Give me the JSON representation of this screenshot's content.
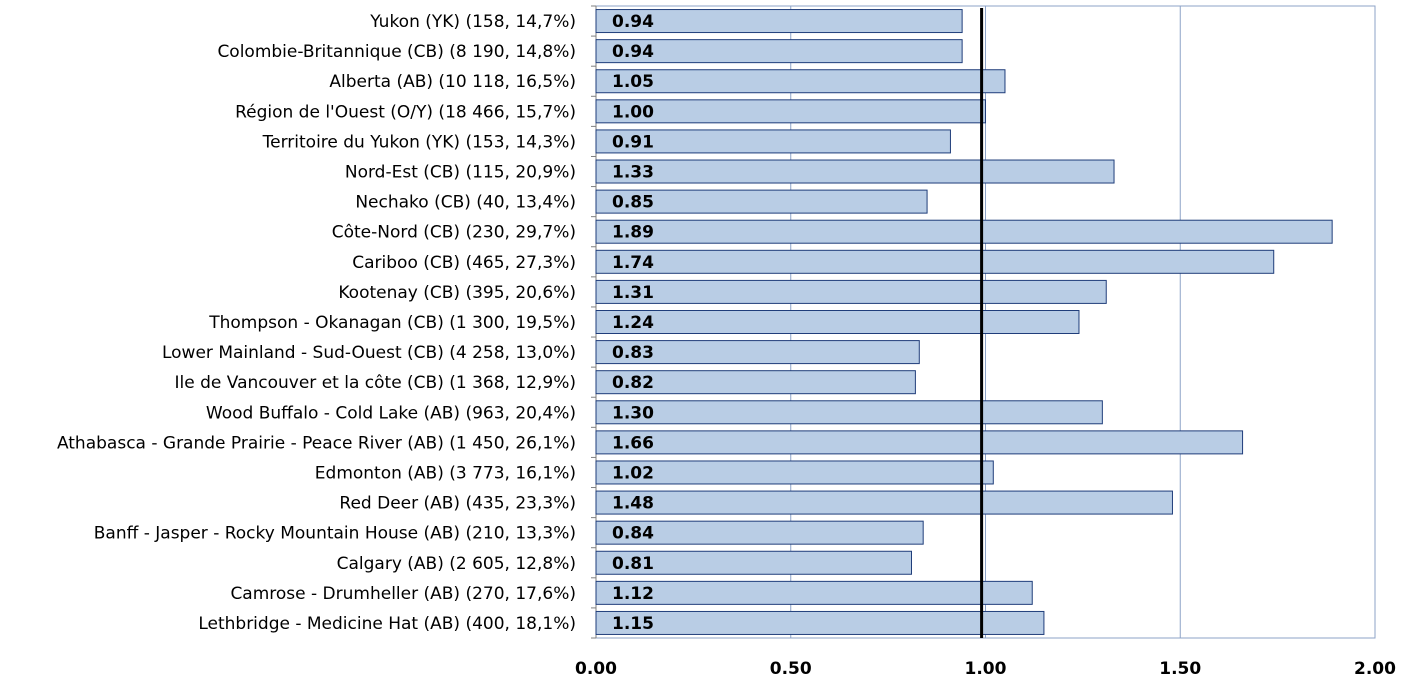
{
  "chart_data": {
    "type": "bar",
    "orientation": "horizontal",
    "categories": [
      "Yukon (YK) (158, 14,7%)",
      "Colombie-Britannique (CB) (8 190, 14,8%)",
      "Alberta (AB) (10 118, 16,5%)",
      "Région de l'Ouest (O/Y) (18 466, 15,7%)",
      "Territoire du Yukon (YK) (153, 14,3%)",
      "Nord-Est (CB) (115, 20,9%)",
      "Nechako (CB) (40, 13,4%)",
      "Côte-Nord (CB) (230, 29,7%)",
      "Cariboo (CB) (465, 27,3%)",
      "Kootenay (CB) (395, 20,6%)",
      "Thompson - Okanagan (CB) (1 300, 19,5%)",
      "Lower Mainland - Sud-Ouest (CB) (4 258, 13,0%)",
      "Ile de Vancouver et la côte (CB) (1 368, 12,9%)",
      "Wood Buffalo - Cold Lake (AB) (963, 20,4%)",
      "Athabasca - Grande Prairie - Peace River (AB) (1 450, 26,1%)",
      "Edmonton (AB) (3 773, 16,1%)",
      "Red Deer (AB) (435, 23,3%)",
      "Banff - Jasper - Rocky Mountain House (AB) (210, 13,3%)",
      "Calgary (AB) (2 605, 12,8%)",
      "Camrose - Drumheller (AB) (270, 17,6%)",
      "Lethbridge - Medicine Hat (AB) (400, 18,1%)"
    ],
    "values": [
      0.94,
      0.94,
      1.05,
      1.0,
      0.91,
      1.33,
      0.85,
      1.89,
      1.74,
      1.31,
      1.24,
      0.83,
      0.82,
      1.3,
      1.66,
      1.02,
      1.48,
      0.84,
      0.81,
      1.12,
      1.15
    ],
    "data_labels": [
      "0.94",
      "0.94",
      "1.05",
      "1.00",
      "0.91",
      "1.33",
      "0.85",
      "1.89",
      "1.74",
      "1.31",
      "1.24",
      "0.83",
      "0.82",
      "1.30",
      "1.66",
      "1.02",
      "1.48",
      "0.84",
      "0.81",
      "1.12",
      "1.15"
    ],
    "xlim": [
      0,
      2.0
    ],
    "x_ticks": [
      "0.00",
      "0.50",
      "1.00",
      "1.50",
      "2.00"
    ],
    "x_tick_values": [
      0,
      0.5,
      1.0,
      1.5,
      2.0
    ],
    "reference_line": 0.99,
    "grid": "vertical",
    "legend": "none",
    "title": "",
    "xlabel": "",
    "ylabel": "",
    "colors": {
      "bar_fill": "#b9cde5",
      "bar_stroke": "#1f3d7a",
      "grid": "#8da3c7",
      "reference_line": "#000000",
      "text": "#000000"
    }
  }
}
